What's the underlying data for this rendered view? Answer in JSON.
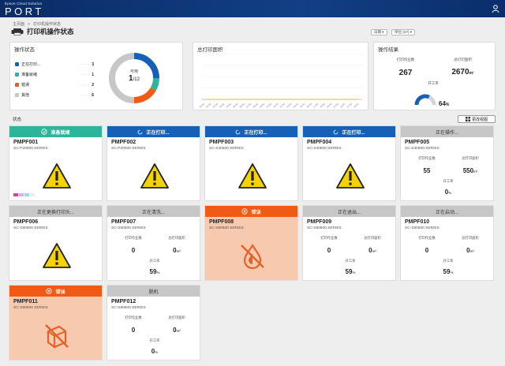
{
  "header": {
    "brand_sub": "Epson Cloud Solution",
    "brand": "PORT"
  },
  "breadcrumb": {
    "home": "主页面",
    "current": "打印机操作状态"
  },
  "page": {
    "title": "打印机操作状态",
    "period": "日期",
    "unit": "单位 (m²)"
  },
  "op_status": {
    "title": "操作状态",
    "legend": [
      {
        "label": "正在打印...",
        "value": "3",
        "color": "#1760b8"
      },
      {
        "label": "准备就绪",
        "value": "1",
        "color": "#2cb59a"
      },
      {
        "label": "错误",
        "value": "2",
        "color": "#f15a14"
      },
      {
        "label": "其他",
        "value": "6",
        "color": "#c7c7c7"
      }
    ],
    "donut_label": "可用",
    "donut_value": "1",
    "donut_total": "/12"
  },
  "total_print": {
    "title": "总打印面积"
  },
  "chart_data": {
    "type": "bar",
    "title": "总打印面积",
    "categories": [
      "00:00",
      "01:00",
      "02:00",
      "03:00",
      "04:00",
      "05:00",
      "06:00",
      "07:00",
      "08:00",
      "09:00",
      "10:00",
      "11:00",
      "12:00",
      "13:00",
      "14:00",
      "15:00",
      "16:00",
      "17:00",
      "18:00",
      "19:00",
      "20:00",
      "21:00",
      "22:00",
      "23:00"
    ],
    "series": [
      {
        "values": [
          0,
          0,
          0,
          0,
          0,
          0,
          0,
          0,
          0,
          0,
          0,
          0,
          0,
          0,
          0,
          0,
          0,
          0,
          0,
          0,
          0,
          0,
          0,
          0
        ]
      },
      {
        "values": [
          0,
          0,
          0,
          0,
          0,
          0,
          0,
          0,
          0,
          0,
          0,
          0,
          0,
          0,
          0,
          0,
          0,
          0,
          0,
          0,
          0,
          0,
          0,
          0
        ]
      }
    ],
    "ylim": [
      0,
      100
    ]
  },
  "results": {
    "title": "操作结果",
    "jobs_label": "打印作业数",
    "jobs_value": "267",
    "area_label": "总打印面积",
    "area_value": "2670",
    "area_unit": "m²",
    "rate_label": "开工率",
    "rate_value": "64",
    "rate_unit": "%"
  },
  "status_section": {
    "label": "状态",
    "view_button": "更改视图"
  },
  "cards": [
    {
      "status": "准备就绪",
      "name": "PMPF001",
      "model": "SC-P20000 SERIES"
    },
    {
      "status": "正在打印...",
      "name": "PMPF002",
      "model": "SC-P20000 SERIES"
    },
    {
      "status": "正在打印...",
      "name": "PMPF003",
      "model": "SC-S40600 SERIES"
    },
    {
      "status": "正在打印...",
      "name": "PMPF004",
      "model": "SC-S40600 SERIES"
    },
    {
      "status": "正在操作...",
      "name": "PMPF005",
      "model": "SC-S40600 SERIES",
      "jobs_label": "打印作业数",
      "jobs": "55",
      "area_label": "总打印面积",
      "area": "550",
      "area_unit": "m²",
      "rate_label": "开工率",
      "rate": "0",
      "rate_unit": "%"
    },
    {
      "status": "正在更换打印头...",
      "name": "PMPF006",
      "model": "SC-S80600 SERIES"
    },
    {
      "status": "正在清洗...",
      "name": "PMPF007",
      "model": "SC-S60600 SERIES",
      "jobs_label": "打印作业数",
      "jobs": "0",
      "area_label": "总打印面积",
      "area": "0",
      "area_unit": "m²",
      "rate_label": "开工率",
      "rate": "59",
      "rate_unit": "%"
    },
    {
      "status": "错误",
      "name": "PMPF008",
      "model": "SC-S80600 SERIES"
    },
    {
      "status": "正在退出...",
      "name": "PMPF009",
      "model": "SC-S80600 SERIES",
      "jobs_label": "打印作业数",
      "jobs": "0",
      "area_label": "总打印面积",
      "area": "0",
      "area_unit": "m²",
      "rate_label": "开工率",
      "rate": "59",
      "rate_unit": "%"
    },
    {
      "status": "正在启动...",
      "name": "PMPF010",
      "model": "SC-S80600 SERIES",
      "jobs_label": "打印作业数",
      "jobs": "0",
      "area_label": "总打印面积",
      "area": "0",
      "area_unit": "m²",
      "rate_label": "开工率",
      "rate": "59",
      "rate_unit": "%"
    },
    {
      "status": "错误",
      "name": "PMPF011",
      "model": "SC-S80600 SERIES"
    },
    {
      "status": "脱机",
      "name": "PMPF012",
      "model": "SC-S80600 SERIES",
      "jobs_label": "打印作业数",
      "jobs": "0",
      "area_label": "总打印面积",
      "area": "0",
      "area_unit": "m²",
      "rate_label": "开工率",
      "rate": "0",
      "rate_unit": "%"
    }
  ]
}
